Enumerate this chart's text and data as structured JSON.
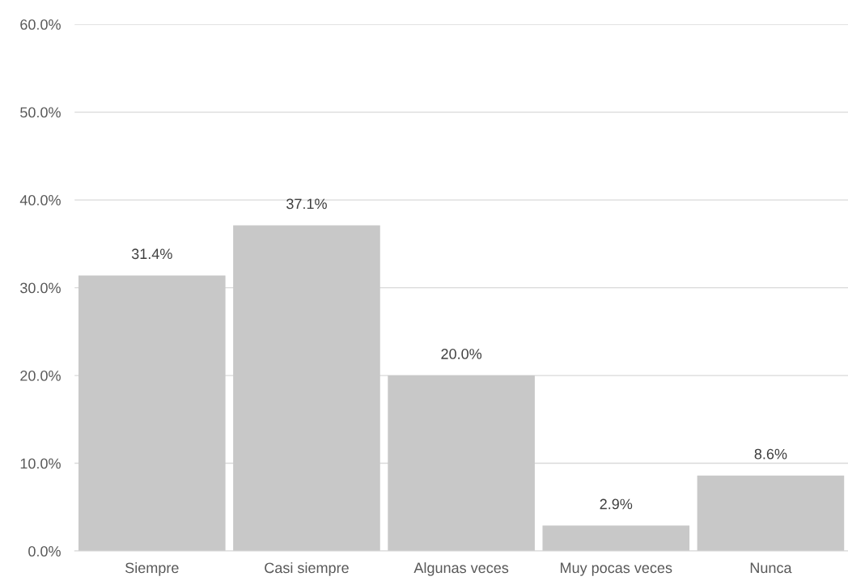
{
  "chart_data": {
    "type": "bar",
    "categories": [
      "Siempre",
      "Casi siempre",
      "Algunas veces",
      "Muy pocas veces",
      "Nunca"
    ],
    "values": [
      31.4,
      37.1,
      20.0,
      2.9,
      8.6
    ],
    "value_labels": [
      "31.4%",
      "37.1%",
      "20.0%",
      "2.9%",
      "8.6%"
    ],
    "color": "#c8c8c8",
    "ylim": [
      0,
      60
    ],
    "yticks": [
      {
        "value": 0,
        "label": "0.0%"
      },
      {
        "value": 10,
        "label": "10.0%"
      },
      {
        "value": 20,
        "label": "20.0%"
      },
      {
        "value": 30,
        "label": "30.0%"
      },
      {
        "value": 40,
        "label": "40.0%"
      },
      {
        "value": 50,
        "label": "50.0%"
      },
      {
        "value": 60,
        "label": "60.0%"
      }
    ],
    "grid": "y"
  }
}
